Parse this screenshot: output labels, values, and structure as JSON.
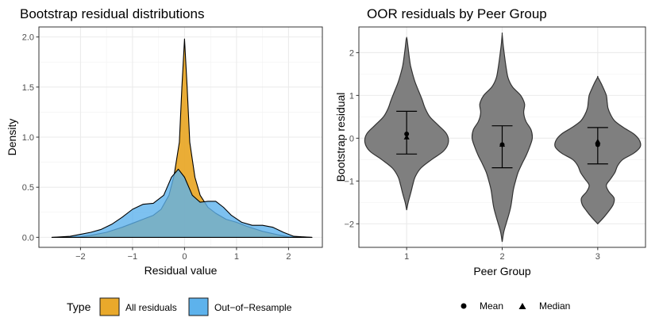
{
  "chart_data": [
    {
      "type": "area",
      "title": "Bootstrap residual distributions",
      "xlabel": "Residual value",
      "ylabel": "Density",
      "xlim": [
        -2.8,
        2.65
      ],
      "ylim": [
        -0.1,
        2.1
      ],
      "xticks": [
        -2,
        -1,
        0,
        1,
        2
      ],
      "yticks": [
        0.0,
        0.5,
        1.0,
        1.5,
        2.0
      ],
      "xtick_labels": [
        "−2",
        "−1",
        "0",
        "1",
        "2"
      ],
      "ytick_labels": [
        "0.0",
        "0.5",
        "1.0",
        "1.5",
        "2.0"
      ],
      "grid": true,
      "series": [
        {
          "name": "All residuals",
          "color": "#E9A92B",
          "x": [
            -2.55,
            -2.0,
            -1.8,
            -1.5,
            -1.2,
            -1.0,
            -0.8,
            -0.6,
            -0.45,
            -0.3,
            -0.2,
            -0.1,
            -0.05,
            0.0,
            0.05,
            0.1,
            0.2,
            0.3,
            0.45,
            0.6,
            0.8,
            1.0,
            1.2,
            1.5,
            1.8,
            2.0,
            2.45
          ],
          "y": [
            0.0,
            0.005,
            0.02,
            0.05,
            0.1,
            0.14,
            0.18,
            0.22,
            0.28,
            0.42,
            0.62,
            0.95,
            1.5,
            1.98,
            1.5,
            0.95,
            0.6,
            0.42,
            0.3,
            0.24,
            0.18,
            0.15,
            0.11,
            0.06,
            0.025,
            0.005,
            0.0
          ]
        },
        {
          "name": "Out−of−Resample",
          "color": "#5DB2EC",
          "x": [
            -2.55,
            -2.2,
            -2.0,
            -1.8,
            -1.6,
            -1.4,
            -1.2,
            -1.0,
            -0.8,
            -0.6,
            -0.4,
            -0.25,
            -0.12,
            0.0,
            0.15,
            0.3,
            0.45,
            0.6,
            0.75,
            0.9,
            1.1,
            1.3,
            1.5,
            1.7,
            1.9,
            2.1,
            2.45
          ],
          "y": [
            0.0,
            0.01,
            0.03,
            0.05,
            0.08,
            0.13,
            0.2,
            0.28,
            0.33,
            0.34,
            0.42,
            0.6,
            0.68,
            0.6,
            0.42,
            0.35,
            0.36,
            0.36,
            0.3,
            0.22,
            0.15,
            0.12,
            0.12,
            0.1,
            0.05,
            0.01,
            0.0
          ]
        }
      ],
      "legend": {
        "title": "Type",
        "position": "bottom",
        "items": [
          "All residuals",
          "Out−of−Resample"
        ]
      }
    },
    {
      "type": "violin",
      "title": "OOR residuals by Peer Group",
      "xlabel": "Peer Group",
      "ylabel": "Bootstrap residual",
      "categories": [
        "1",
        "2",
        "3"
      ],
      "ylim": [
        -2.55,
        2.6
      ],
      "yticks": [
        -2,
        -1,
        0,
        1,
        2
      ],
      "ytick_labels": [
        "−2",
        "−1",
        "0",
        "1",
        "2"
      ],
      "grid": true,
      "fill_color": "#7F7F7F",
      "groups": [
        {
          "name": "1",
          "mean": 0.1,
          "median": 0.02,
          "err_low": -0.37,
          "err_high": 0.63,
          "profile_y": [
            -1.68,
            -1.5,
            -1.3,
            -1.1,
            -0.9,
            -0.7,
            -0.5,
            -0.3,
            -0.1,
            0.1,
            0.3,
            0.5,
            0.7,
            0.9,
            1.1,
            1.3,
            1.5,
            1.7,
            1.9,
            2.1,
            2.3,
            2.35
          ],
          "profile_w": [
            0.0,
            0.035,
            0.09,
            0.14,
            0.2,
            0.33,
            0.58,
            0.86,
            0.97,
            0.93,
            0.74,
            0.54,
            0.43,
            0.36,
            0.28,
            0.2,
            0.14,
            0.09,
            0.06,
            0.035,
            0.012,
            0.0
          ]
        },
        {
          "name": "2",
          "mean": -0.15,
          "median": -0.15,
          "err_low": -0.69,
          "err_high": 0.29,
          "profile_y": [
            -2.42,
            -2.2,
            -2.0,
            -1.8,
            -1.6,
            -1.4,
            -1.2,
            -1.0,
            -0.8,
            -0.6,
            -0.4,
            -0.2,
            0.0,
            0.2,
            0.4,
            0.6,
            0.8,
            1.0,
            1.2,
            1.4,
            1.6,
            1.8,
            2.0,
            2.2,
            2.43
          ],
          "profile_w": [
            0.0,
            0.035,
            0.09,
            0.15,
            0.2,
            0.23,
            0.26,
            0.31,
            0.37,
            0.46,
            0.56,
            0.64,
            0.7,
            0.67,
            0.55,
            0.5,
            0.52,
            0.43,
            0.24,
            0.14,
            0.1,
            0.07,
            0.045,
            0.02,
            0.0
          ]
        },
        {
          "name": "3",
          "mean": -0.15,
          "median": -0.08,
          "err_low": -0.6,
          "err_high": 0.25,
          "profile_y": [
            -2.0,
            -1.85,
            -1.7,
            -1.55,
            -1.4,
            -1.25,
            -1.1,
            -0.95,
            -0.8,
            -0.65,
            -0.5,
            -0.35,
            -0.2,
            -0.05,
            0.1,
            0.25,
            0.4,
            0.55,
            0.7,
            0.85,
            1.0,
            1.15,
            1.3,
            1.43
          ],
          "profile_w": [
            0.0,
            0.14,
            0.26,
            0.36,
            0.38,
            0.26,
            0.2,
            0.3,
            0.4,
            0.46,
            0.58,
            0.84,
            0.99,
            0.97,
            0.84,
            0.6,
            0.4,
            0.3,
            0.24,
            0.22,
            0.2,
            0.14,
            0.07,
            0.0
          ]
        }
      ],
      "legend": {
        "position": "bottom",
        "items": [
          {
            "label": "Mean",
            "shape": "circle"
          },
          {
            "label": "Median",
            "shape": "triangle"
          }
        ]
      }
    }
  ]
}
